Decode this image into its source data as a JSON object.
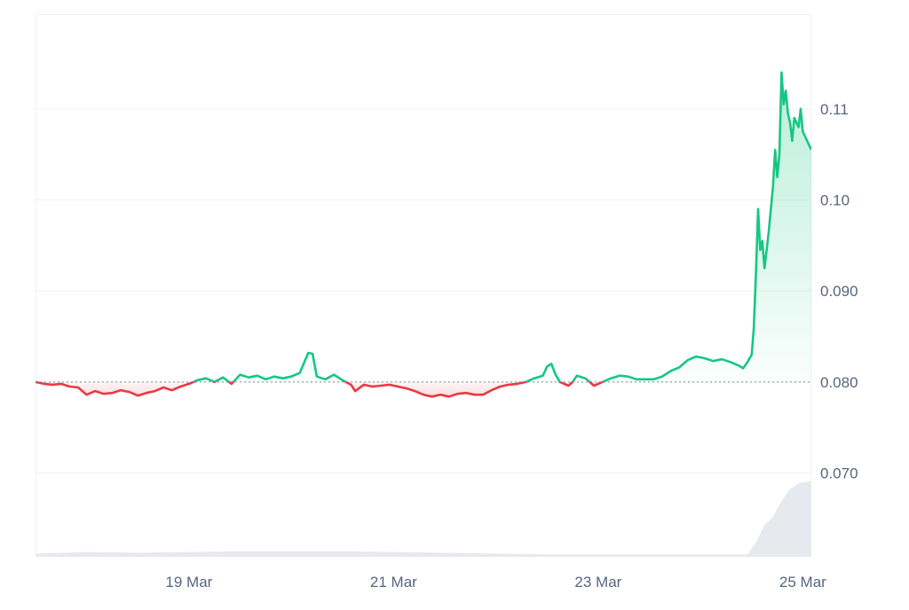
{
  "chart_data": {
    "type": "area",
    "title": "",
    "xlabel": "",
    "ylabel": "",
    "x_ticks": [
      "19 Mar",
      "21 Mar",
      "23 Mar",
      "25 Mar"
    ],
    "y_ticks": [
      "0.070",
      "0.080",
      "0.090",
      "0.10",
      "0.11"
    ],
    "ylim": [
      0.0608,
      0.1204
    ],
    "xlim": [
      "2025-03-18 00:00",
      "2025-03-25 14:00"
    ],
    "baseline": 0.08,
    "grid": true,
    "colors": {
      "up": "#16c784",
      "down": "#ea3943",
      "volume": "#e6e9ee",
      "grid": "#eff2f5",
      "baseline": "#808a9d"
    },
    "series": [
      {
        "values": [
          [
            "2025-03-18 00:00",
            0.08
          ],
          [
            "2025-03-18 02:00",
            0.0798
          ],
          [
            "2025-03-18 04:00",
            0.0797
          ],
          [
            "2025-03-18 06:00",
            0.0798
          ],
          [
            "2025-03-18 08:00",
            0.0795
          ],
          [
            "2025-03-18 10:00",
            0.0794
          ],
          [
            "2025-03-18 12:00",
            0.0786
          ],
          [
            "2025-03-18 14:00",
            0.079
          ],
          [
            "2025-03-18 16:00",
            0.0787
          ],
          [
            "2025-03-18 18:00",
            0.0788
          ],
          [
            "2025-03-18 20:00",
            0.0791
          ],
          [
            "2025-03-18 22:00",
            0.0789
          ],
          [
            "2025-03-19 00:00",
            0.0785
          ],
          [
            "2025-03-19 02:00",
            0.0788
          ],
          [
            "2025-03-19 04:00",
            0.079
          ],
          [
            "2025-03-19 06:00",
            0.0794
          ],
          [
            "2025-03-19 08:00",
            0.0791
          ],
          [
            "2025-03-19 10:00",
            0.0795
          ],
          [
            "2025-03-19 12:00",
            0.0798
          ],
          [
            "2025-03-19 14:00",
            0.0802
          ],
          [
            "2025-03-19 16:00",
            0.0804
          ],
          [
            "2025-03-19 18:00",
            0.08
          ],
          [
            "2025-03-19 20:00",
            0.0805
          ],
          [
            "2025-03-19 22:00",
            0.0798
          ],
          [
            "2025-03-20 00:00",
            0.0808
          ],
          [
            "2025-03-20 02:00",
            0.0805
          ],
          [
            "2025-03-20 04:00",
            0.0807
          ],
          [
            "2025-03-20 06:00",
            0.0803
          ],
          [
            "2025-03-20 08:00",
            0.0806
          ],
          [
            "2025-03-20 10:00",
            0.0804
          ],
          [
            "2025-03-20 12:00",
            0.0806
          ],
          [
            "2025-03-20 14:00",
            0.081
          ],
          [
            "2025-03-20 16:00",
            0.0832
          ],
          [
            "2025-03-20 17:00",
            0.0831
          ],
          [
            "2025-03-20 18:00",
            0.0806
          ],
          [
            "2025-03-20 20:00",
            0.0803
          ],
          [
            "2025-03-20 22:00",
            0.0808
          ],
          [
            "2025-03-21 00:00",
            0.0802
          ],
          [
            "2025-03-21 02:00",
            0.0797
          ],
          [
            "2025-03-21 03:00",
            0.079
          ],
          [
            "2025-03-21 05:00",
            0.0797
          ],
          [
            "2025-03-21 07:00",
            0.0795
          ],
          [
            "2025-03-21 09:00",
            0.0796
          ],
          [
            "2025-03-21 11:00",
            0.0797
          ],
          [
            "2025-03-21 13:00",
            0.0795
          ],
          [
            "2025-03-21 15:00",
            0.0793
          ],
          [
            "2025-03-21 17:00",
            0.079
          ],
          [
            "2025-03-21 19:00",
            0.0786
          ],
          [
            "2025-03-21 21:00",
            0.0784
          ],
          [
            "2025-03-21 23:00",
            0.0786
          ],
          [
            "2025-03-22 01:00",
            0.0784
          ],
          [
            "2025-03-22 03:00",
            0.0787
          ],
          [
            "2025-03-22 05:00",
            0.0788
          ],
          [
            "2025-03-22 07:00",
            0.0786
          ],
          [
            "2025-03-22 09:00",
            0.0786
          ],
          [
            "2025-03-22 11:00",
            0.0791
          ],
          [
            "2025-03-22 13:00",
            0.0795
          ],
          [
            "2025-03-22 15:00",
            0.0797
          ],
          [
            "2025-03-22 17:00",
            0.0798
          ],
          [
            "2025-03-22 19:00",
            0.08
          ],
          [
            "2025-03-22 21:00",
            0.0804
          ],
          [
            "2025-03-22 23:00",
            0.0807
          ],
          [
            "2025-03-23 00:00",
            0.0817
          ],
          [
            "2025-03-23 01:00",
            0.082
          ],
          [
            "2025-03-23 02:00",
            0.0808
          ],
          [
            "2025-03-23 03:00",
            0.08
          ],
          [
            "2025-03-23 05:00",
            0.0796
          ],
          [
            "2025-03-23 06:00",
            0.08
          ],
          [
            "2025-03-23 07:00",
            0.0807
          ],
          [
            "2025-03-23 09:00",
            0.0804
          ],
          [
            "2025-03-23 11:00",
            0.0796
          ],
          [
            "2025-03-23 13:00",
            0.08
          ],
          [
            "2025-03-23 15:00",
            0.0804
          ],
          [
            "2025-03-23 17:00",
            0.0807
          ],
          [
            "2025-03-23 19:00",
            0.0806
          ],
          [
            "2025-03-23 21:00",
            0.0803
          ],
          [
            "2025-03-23 23:00",
            0.0803
          ],
          [
            "2025-03-24 01:00",
            0.0803
          ],
          [
            "2025-03-24 03:00",
            0.0806
          ],
          [
            "2025-03-24 05:00",
            0.0812
          ],
          [
            "2025-03-24 07:00",
            0.0816
          ],
          [
            "2025-03-24 09:00",
            0.0824
          ],
          [
            "2025-03-24 11:00",
            0.0828
          ],
          [
            "2025-03-24 13:00",
            0.0826
          ],
          [
            "2025-03-24 15:00",
            0.0823
          ],
          [
            "2025-03-24 17:00",
            0.0825
          ],
          [
            "2025-03-24 19:00",
            0.0822
          ],
          [
            "2025-03-24 21:00",
            0.0818
          ],
          [
            "2025-03-24 22:00",
            0.0815
          ],
          [
            "2025-03-24 23:00",
            0.0822
          ],
          [
            "2025-03-25 00:00",
            0.083
          ],
          [
            "2025-03-25 00:30",
            0.086
          ],
          [
            "2025-03-25 01:00",
            0.092
          ],
          [
            "2025-03-25 01:30",
            0.099
          ],
          [
            "2025-03-25 02:00",
            0.0945
          ],
          [
            "2025-03-25 02:30",
            0.0955
          ],
          [
            "2025-03-25 03:00",
            0.0925
          ],
          [
            "2025-03-25 03:30",
            0.0945
          ],
          [
            "2025-03-25 04:00",
            0.0965
          ],
          [
            "2025-03-25 04:30",
            0.099
          ],
          [
            "2025-03-25 05:00",
            0.1015
          ],
          [
            "2025-03-25 05:30",
            0.1055
          ],
          [
            "2025-03-25 06:00",
            0.1025
          ],
          [
            "2025-03-25 06:30",
            0.105
          ],
          [
            "2025-03-25 07:00",
            0.114
          ],
          [
            "2025-03-25 07:30",
            0.1105
          ],
          [
            "2025-03-25 08:00",
            0.112
          ],
          [
            "2025-03-25 08:30",
            0.1095
          ],
          [
            "2025-03-25 09:00",
            0.1085
          ],
          [
            "2025-03-25 09:30",
            0.1065
          ],
          [
            "2025-03-25 10:00",
            0.109
          ],
          [
            "2025-03-25 11:00",
            0.108
          ],
          [
            "2025-03-25 11:30",
            0.11
          ],
          [
            "2025-03-25 12:00",
            0.1075
          ],
          [
            "2025-03-25 13:00",
            0.1065
          ],
          [
            "2025-03-25 14:00",
            0.1055
          ]
        ]
      }
    ],
    "volume_series": [
      {
        "values": [
          [
            "2025-03-18 00:00",
            0.04
          ],
          [
            "2025-03-18 12:00",
            0.06
          ],
          [
            "2025-03-19 00:00",
            0.05
          ],
          [
            "2025-03-19 12:00",
            0.06
          ],
          [
            "2025-03-20 00:00",
            0.07
          ],
          [
            "2025-03-20 12:00",
            0.07
          ],
          [
            "2025-03-21 00:00",
            0.07
          ],
          [
            "2025-03-21 12:00",
            0.06
          ],
          [
            "2025-03-22 00:00",
            0.05
          ],
          [
            "2025-03-22 12:00",
            0.04
          ],
          [
            "2025-03-23 00:00",
            0.03
          ],
          [
            "2025-03-23 12:00",
            0.03
          ],
          [
            "2025-03-24 00:00",
            0.03
          ],
          [
            "2025-03-24 12:00",
            0.03
          ],
          [
            "2025-03-24 23:00",
            0.03
          ],
          [
            "2025-03-25 01:00",
            0.18
          ],
          [
            "2025-03-25 03:00",
            0.4
          ],
          [
            "2025-03-25 05:00",
            0.5
          ],
          [
            "2025-03-25 07:00",
            0.7
          ],
          [
            "2025-03-25 09:00",
            0.85
          ],
          [
            "2025-03-25 11:00",
            0.92
          ],
          [
            "2025-03-25 14:00",
            0.95
          ]
        ]
      }
    ]
  }
}
